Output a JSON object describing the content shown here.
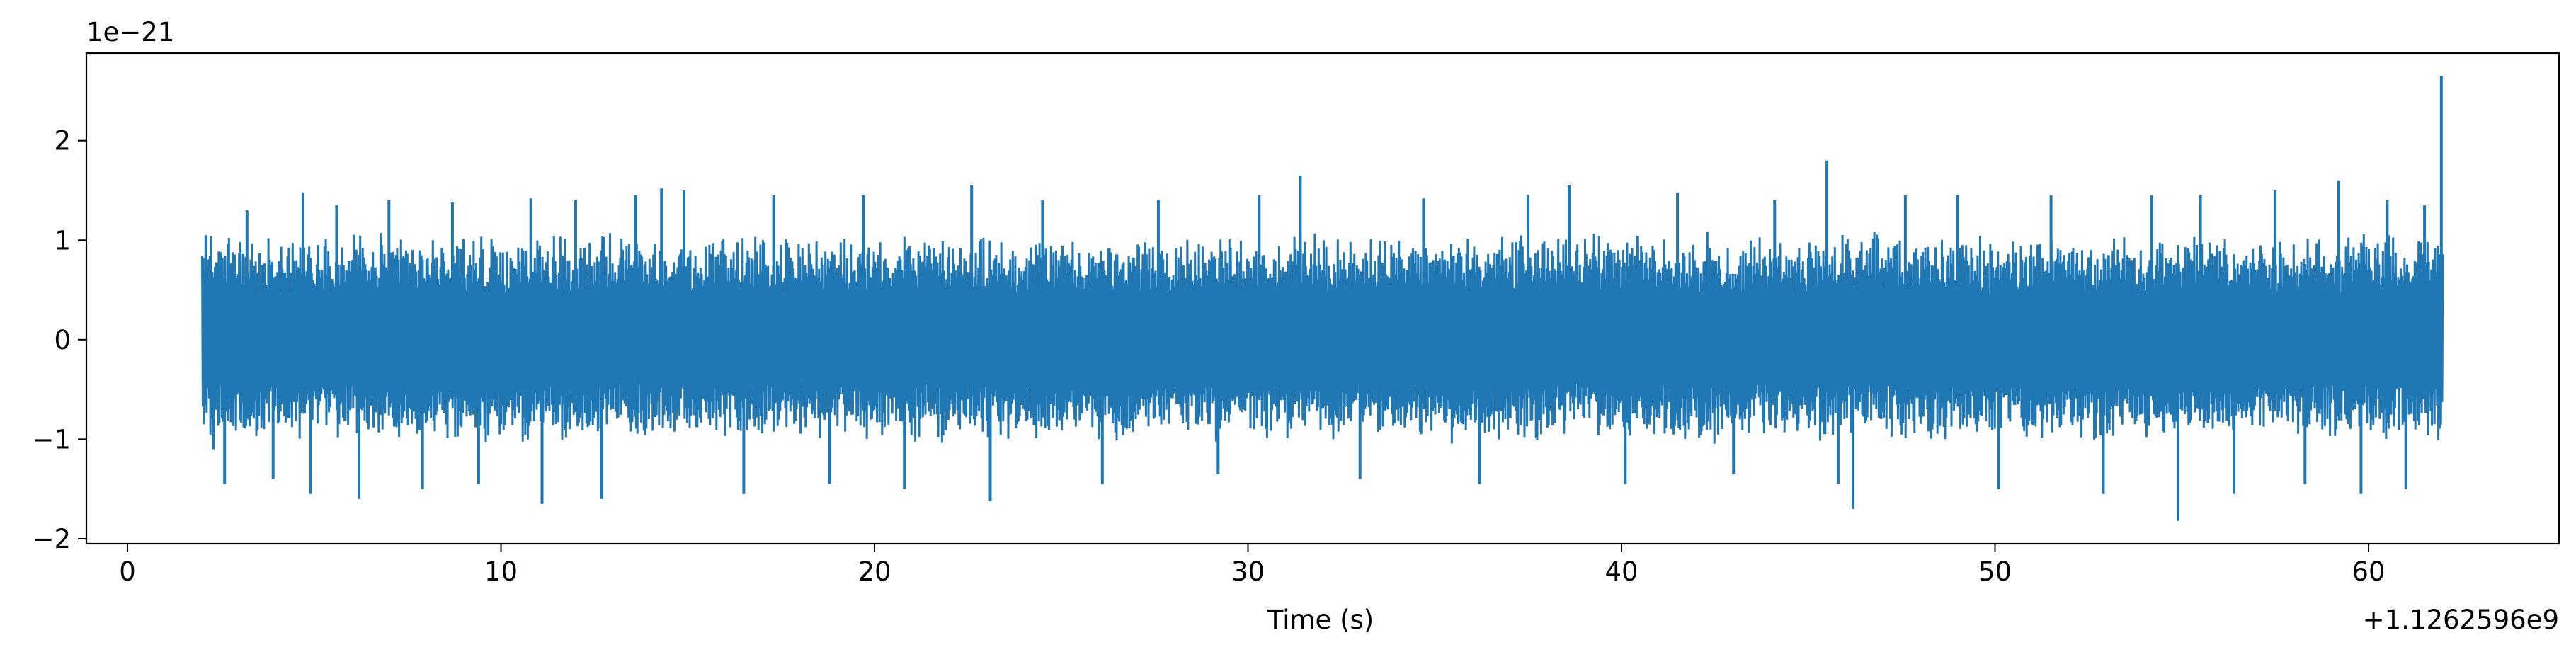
{
  "chart_data": {
    "type": "line",
    "title": "",
    "xlabel": "Time (s)",
    "ylabel": "",
    "x_offset_label": "+1.1262596e9",
    "y_scale_label": "1e−21",
    "xlim": [
      -1.1,
      65.1
    ],
    "ylim": [
      -2.05,
      2.88
    ],
    "x_ticks": [
      0,
      10,
      20,
      30,
      40,
      50,
      60
    ],
    "x_tick_labels": [
      "0",
      "10",
      "20",
      "30",
      "40",
      "50",
      "60"
    ],
    "y_ticks": [
      -2,
      -1,
      0,
      1,
      2
    ],
    "y_tick_labels": [
      "−2",
      "−1",
      "0",
      "1",
      "2"
    ],
    "grid": false,
    "legend": "none",
    "color": "#1f77b4",
    "series": [
      {
        "x_start": 2.0,
        "x_end": 62.0,
        "typical_envelope": [
          -1.05,
          1.1
        ],
        "spikes": [
          {
            "x": 2.1,
            "y": 1.05
          },
          {
            "x": 2.3,
            "y": -1.1
          },
          {
            "x": 2.6,
            "y": -1.45
          },
          {
            "x": 3.2,
            "y": 1.3
          },
          {
            "x": 3.9,
            "y": -1.4
          },
          {
            "x": 4.7,
            "y": 1.48
          },
          {
            "x": 4.9,
            "y": -1.55
          },
          {
            "x": 5.6,
            "y": 1.35
          },
          {
            "x": 6.2,
            "y": -1.6
          },
          {
            "x": 7.0,
            "y": 1.4
          },
          {
            "x": 7.6,
            "y": -0.7
          },
          {
            "x": 7.9,
            "y": -1.5
          },
          {
            "x": 8.7,
            "y": 1.38
          },
          {
            "x": 9.4,
            "y": -1.45
          },
          {
            "x": 10.8,
            "y": 1.42
          },
          {
            "x": 11.1,
            "y": -1.65
          },
          {
            "x": 12.0,
            "y": 1.4
          },
          {
            "x": 12.7,
            "y": -1.6
          },
          {
            "x": 13.6,
            "y": 1.45
          },
          {
            "x": 14.3,
            "y": 1.52
          },
          {
            "x": 14.9,
            "y": 1.5
          },
          {
            "x": 16.5,
            "y": -1.55
          },
          {
            "x": 17.3,
            "y": 1.45
          },
          {
            "x": 18.8,
            "y": -1.45
          },
          {
            "x": 19.7,
            "y": 1.45
          },
          {
            "x": 20.8,
            "y": -1.5
          },
          {
            "x": 22.6,
            "y": 1.55
          },
          {
            "x": 23.1,
            "y": -1.62
          },
          {
            "x": 24.5,
            "y": 1.4
          },
          {
            "x": 26.1,
            "y": -1.45
          },
          {
            "x": 27.6,
            "y": 1.4
          },
          {
            "x": 29.2,
            "y": -1.35
          },
          {
            "x": 30.3,
            "y": 1.45
          },
          {
            "x": 31.4,
            "y": 1.65
          },
          {
            "x": 33.0,
            "y": -1.4
          },
          {
            "x": 34.7,
            "y": 1.42
          },
          {
            "x": 36.2,
            "y": -1.45
          },
          {
            "x": 37.5,
            "y": 1.45
          },
          {
            "x": 38.6,
            "y": 1.55
          },
          {
            "x": 40.1,
            "y": -1.45
          },
          {
            "x": 41.5,
            "y": 1.48
          },
          {
            "x": 43.0,
            "y": -1.35
          },
          {
            "x": 44.1,
            "y": 1.4
          },
          {
            "x": 45.5,
            "y": 1.8
          },
          {
            "x": 45.8,
            "y": -1.45
          },
          {
            "x": 46.2,
            "y": -1.7
          },
          {
            "x": 47.6,
            "y": 1.45
          },
          {
            "x": 49.0,
            "y": 1.45
          },
          {
            "x": 50.1,
            "y": -1.5
          },
          {
            "x": 51.5,
            "y": 1.45
          },
          {
            "x": 52.9,
            "y": -1.55
          },
          {
            "x": 54.2,
            "y": 1.45
          },
          {
            "x": 54.9,
            "y": -1.82
          },
          {
            "x": 55.5,
            "y": 1.45
          },
          {
            "x": 56.4,
            "y": -1.55
          },
          {
            "x": 57.5,
            "y": 1.5
          },
          {
            "x": 58.3,
            "y": -1.45
          },
          {
            "x": 59.2,
            "y": 1.6
          },
          {
            "x": 59.8,
            "y": -1.55
          },
          {
            "x": 60.5,
            "y": 1.4
          },
          {
            "x": 61.0,
            "y": -1.5
          },
          {
            "x": 61.5,
            "y": 1.35
          },
          {
            "x": 61.95,
            "y": 2.65
          }
        ]
      }
    ]
  }
}
